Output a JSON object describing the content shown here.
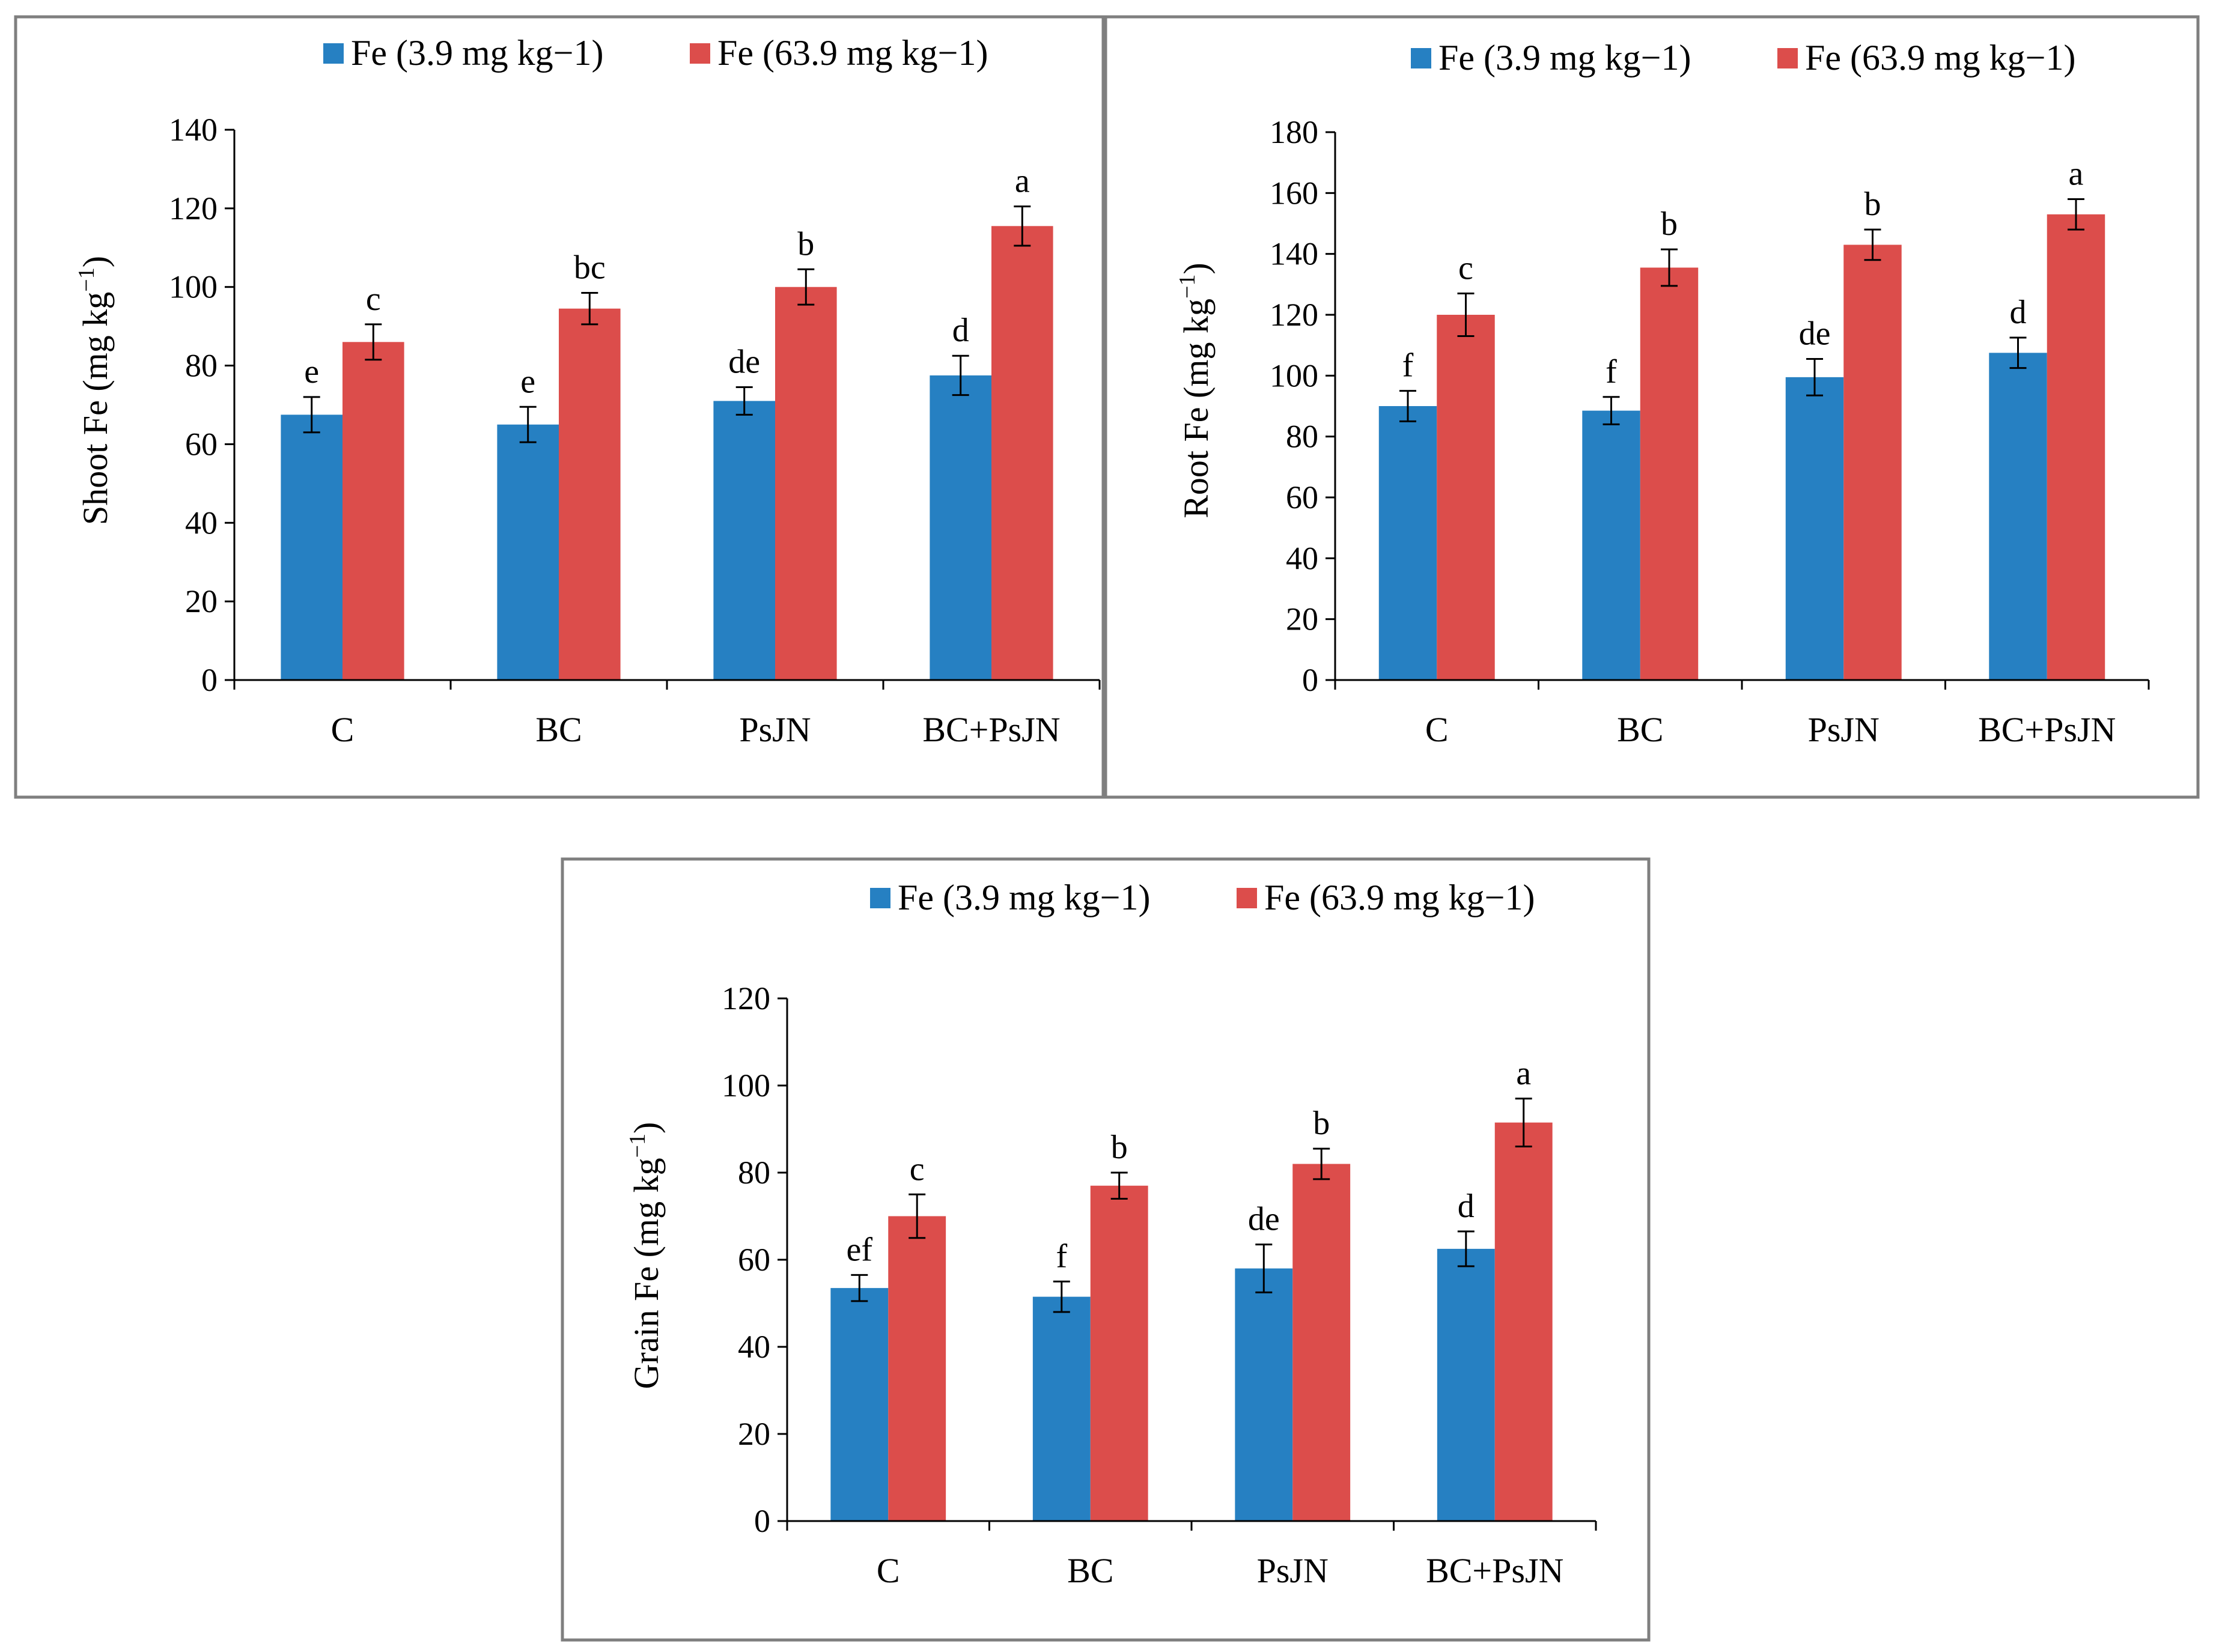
{
  "colors": {
    "low": "#2680c2",
    "high": "#dc4d4b",
    "frame": "#7f7f7f",
    "axis": "#000000"
  },
  "legend": {
    "low": "Fe (3.9 mg kg−1)",
    "high": "Fe (63.9 mg kg−1)"
  },
  "chart_data": [
    {
      "id": "shoot",
      "type": "bar",
      "ylabel": "Shoot Fe (mg kg",
      "ylabel_sup": "−1",
      "ylabel_close": ")",
      "ylim": [
        0,
        140
      ],
      "yticks": [
        0,
        20,
        40,
        60,
        80,
        100,
        120,
        140
      ],
      "categories": [
        "C",
        "BC",
        "PsJN",
        "BC+PsJN"
      ],
      "series": [
        {
          "name": "Fe (3.9 mg kg−1)",
          "color": "#2680c2",
          "values": [
            67.5,
            65,
            71,
            77.5
          ],
          "errors": [
            4.5,
            4.5,
            3.5,
            5
          ],
          "letters": [
            "e",
            "e",
            "de",
            "d"
          ]
        },
        {
          "name": "Fe (63.9 mg kg−1)",
          "color": "#dc4d4b",
          "values": [
            86,
            94.5,
            100,
            115.5
          ],
          "errors": [
            4.5,
            4,
            4.5,
            5
          ],
          "letters": [
            "c",
            "bc",
            "b",
            "a"
          ]
        }
      ]
    },
    {
      "id": "root",
      "type": "bar",
      "ylabel": "Root Fe (mg kg",
      "ylabel_sup": "−1",
      "ylabel_close": ")",
      "ylim": [
        0,
        180
      ],
      "yticks": [
        0,
        20,
        40,
        60,
        80,
        100,
        120,
        140,
        160,
        180
      ],
      "categories": [
        "C",
        "BC",
        "PsJN",
        "BC+PsJN"
      ],
      "series": [
        {
          "name": "Fe (3.9 mg kg−1)",
          "color": "#2680c2",
          "values": [
            90,
            88.5,
            99.5,
            107.5
          ],
          "errors": [
            5,
            4.5,
            6,
            5
          ],
          "letters": [
            "f",
            "f",
            "de",
            "d"
          ]
        },
        {
          "name": "Fe (63.9 mg kg−1)",
          "color": "#dc4d4b",
          "values": [
            120,
            135.5,
            143,
            153
          ],
          "errors": [
            7,
            6,
            5,
            5
          ],
          "letters": [
            "c",
            "b",
            "b",
            "a"
          ]
        }
      ]
    },
    {
      "id": "grain",
      "type": "bar",
      "ylabel": "Grain Fe (mg kg",
      "ylabel_sup": "−1",
      "ylabel_close": ")",
      "ylim": [
        0,
        120
      ],
      "yticks": [
        0,
        20,
        40,
        60,
        80,
        100,
        120
      ],
      "categories": [
        "C",
        "BC",
        "PsJN",
        "BC+PsJN"
      ],
      "series": [
        {
          "name": "Fe (3.9 mg kg−1)",
          "color": "#2680c2",
          "values": [
            53.5,
            51.5,
            58,
            62.5
          ],
          "errors": [
            3,
            3.5,
            5.5,
            4
          ],
          "letters": [
            "ef",
            "f",
            "de",
            "d"
          ]
        },
        {
          "name": "Fe (63.9 mg kg−1)",
          "color": "#dc4d4b",
          "values": [
            70,
            77,
            82,
            91.5
          ],
          "errors": [
            5,
            3,
            3.5,
            5.5
          ],
          "letters": [
            "c",
            "b",
            "b",
            "a"
          ]
        }
      ]
    }
  ]
}
